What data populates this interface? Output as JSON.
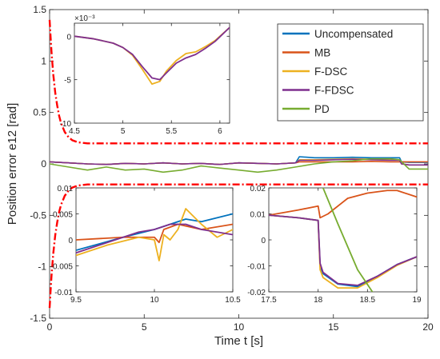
{
  "chart_data": [
    {
      "id": "main",
      "type": "line",
      "title": "",
      "xlabel": "Time t [s]",
      "ylabel": "Position error e12 [rad]",
      "xlim": [
        0,
        20
      ],
      "ylim": [
        -1.5,
        1.5
      ],
      "xticks": [
        0,
        5,
        10,
        15,
        20
      ],
      "xtick_labels": [
        "0",
        "5",
        "10",
        "15",
        "20"
      ],
      "yticks": [
        -1.5,
        -1,
        -0.5,
        0,
        0.5,
        1,
        1.5
      ],
      "ytick_labels": [
        "-1.5",
        "-1",
        "-0.5",
        "0",
        "0.5",
        "1",
        "1.5"
      ],
      "grid": false,
      "legend_position": "top-right",
      "series": [
        {
          "name": "Uncompensated",
          "color": "#0072BD",
          "x": [
            0,
            1,
            2,
            3,
            4,
            5,
            6,
            7,
            8,
            9,
            10,
            11,
            12,
            13,
            13.2,
            14,
            15,
            16,
            17,
            18,
            18.5,
            18.6,
            19,
            20
          ],
          "y": [
            0.02,
            0.01,
            0.0,
            -0.005,
            0.005,
            0.0,
            0.01,
            0.0,
            0.005,
            -0.005,
            0.01,
            0.005,
            0.0,
            0.01,
            0.07,
            0.06,
            0.06,
            0.065,
            0.06,
            0.06,
            0.06,
            0.02,
            0.015,
            0.015
          ]
        },
        {
          "name": "MB",
          "color": "#D95319",
          "x": [
            0,
            1,
            2,
            3,
            4,
            5,
            6,
            7,
            8,
            9,
            10,
            11,
            12,
            13,
            13.2,
            14,
            15,
            16,
            17,
            18,
            18.5,
            18.6,
            19,
            20
          ],
          "y": [
            0.02,
            0.01,
            0.0,
            -0.005,
            0.005,
            0.0,
            0.01,
            0.0,
            0.005,
            -0.005,
            0.01,
            0.005,
            0.0,
            0.01,
            0.02,
            0.02,
            0.02,
            0.02,
            0.025,
            0.02,
            0.02,
            0.02,
            0.02,
            0.02
          ]
        },
        {
          "name": "F-DSC",
          "color": "#EDB120",
          "x": [
            0,
            1,
            2,
            3,
            4,
            5,
            6,
            7,
            8,
            9,
            10,
            11,
            12,
            13,
            13.2,
            14,
            15,
            16,
            17,
            18,
            18.5,
            18.6,
            19,
            20
          ],
          "y": [
            0.02,
            0.01,
            0.0,
            -0.005,
            0.005,
            0.0,
            0.01,
            0.0,
            0.005,
            -0.005,
            0.01,
            0.005,
            0.0,
            0.01,
            0.04,
            0.04,
            0.045,
            0.05,
            0.045,
            0.04,
            0.04,
            0.0,
            -0.01,
            -0.01
          ]
        },
        {
          "name": "F-FDSC",
          "color": "#7E2F8E",
          "x": [
            0,
            1,
            2,
            3,
            4,
            5,
            6,
            7,
            8,
            9,
            10,
            11,
            12,
            13,
            13.2,
            14,
            15,
            16,
            17,
            18,
            18.5,
            18.6,
            19,
            20
          ],
          "y": [
            0.02,
            0.01,
            0.0,
            -0.005,
            0.005,
            0.0,
            0.01,
            0.0,
            0.005,
            -0.005,
            0.01,
            0.005,
            0.0,
            0.01,
            0.035,
            0.035,
            0.04,
            0.045,
            0.04,
            0.035,
            0.035,
            0.0,
            -0.01,
            -0.01
          ]
        },
        {
          "name": "PD",
          "color": "#77AC30",
          "x": [
            0,
            1,
            2,
            3,
            4,
            5,
            6,
            7,
            8,
            9,
            10,
            11,
            12,
            13,
            14,
            15,
            16,
            17,
            18,
            18.5,
            19,
            20
          ],
          "y": [
            0.0,
            -0.03,
            -0.06,
            -0.03,
            -0.06,
            -0.05,
            -0.08,
            -0.06,
            -0.02,
            -0.04,
            -0.06,
            -0.08,
            -0.06,
            -0.03,
            0.0,
            0.02,
            0.03,
            0.05,
            0.05,
            0.04,
            -0.05,
            -0.05
          ]
        }
      ],
      "bounds": {
        "name": "bounds",
        "color": "#ff0000",
        "x": [
          0,
          0.05,
          0.1,
          0.15,
          0.2,
          0.3,
          0.4,
          0.5,
          0.6,
          0.8,
          1.0,
          1.2,
          1.5,
          2,
          3,
          5,
          10,
          15,
          20
        ],
        "upper": [
          1.4,
          1.24,
          1.09,
          0.97,
          0.86,
          0.69,
          0.57,
          0.47,
          0.4,
          0.31,
          0.26,
          0.23,
          0.21,
          0.2,
          0.2,
          0.2,
          0.2,
          0.2,
          0.2
        ],
        "lower": [
          -1.4,
          -1.24,
          -1.09,
          -0.97,
          -0.86,
          -0.69,
          -0.57,
          -0.47,
          -0.4,
          -0.31,
          -0.26,
          -0.23,
          -0.21,
          -0.2,
          -0.2,
          -0.2,
          -0.2,
          -0.2,
          -0.2
        ]
      }
    },
    {
      "id": "inset1",
      "type": "line",
      "xlim": [
        4.5,
        6.1
      ],
      "ylim": [
        -0.01,
        0.0015
      ],
      "xticks": [
        4.5,
        5,
        5.5,
        6
      ],
      "xtick_labels": [
        "4.5",
        "5",
        "5.5",
        "6"
      ],
      "yticks": [
        0,
        -0.005,
        -0.01
      ],
      "ytick_labels": [
        "0",
        "-5",
        "-10"
      ],
      "exponent_label": "×10⁻³",
      "series": [
        {
          "name": "F-DSC",
          "color": "#EDB120",
          "x": [
            4.5,
            4.7,
            4.9,
            5.0,
            5.1,
            5.2,
            5.3,
            5.38,
            5.45,
            5.55,
            5.65,
            5.75,
            5.85,
            5.95,
            6.1
          ],
          "y": [
            0.0,
            -0.0003,
            -0.0008,
            -0.0013,
            -0.0022,
            -0.0038,
            -0.0055,
            -0.0052,
            -0.004,
            -0.0028,
            -0.002,
            -0.0018,
            -0.0012,
            -0.0005,
            0.001
          ]
        },
        {
          "name": "F-FDSC",
          "color": "#7E2F8E",
          "x": [
            4.5,
            4.7,
            4.9,
            5.0,
            5.1,
            5.2,
            5.3,
            5.38,
            5.45,
            5.55,
            5.65,
            5.75,
            5.85,
            5.95,
            6.1
          ],
          "y": [
            0.0,
            -0.0003,
            -0.0008,
            -0.0013,
            -0.0021,
            -0.0035,
            -0.0048,
            -0.005,
            -0.0042,
            -0.0031,
            -0.0025,
            -0.0021,
            -0.0014,
            -0.0006,
            0.001
          ]
        }
      ]
    },
    {
      "id": "inset2",
      "type": "line",
      "xlim": [
        9.5,
        10.5
      ],
      "ylim": [
        -0.01,
        0.01
      ],
      "xticks": [
        9.5,
        10,
        10.5
      ],
      "xtick_labels": [
        "9.5",
        "10",
        "10.5"
      ],
      "yticks": [
        0.01,
        0.005,
        0,
        -0.005,
        -0.01
      ],
      "ytick_labels": [
        "0.01",
        "0.005",
        "0",
        "-0.005",
        "-0.01"
      ],
      "series": [
        {
          "name": "Uncompensated",
          "color": "#0072BD",
          "x": [
            9.5,
            9.8,
            10.0,
            10.1,
            10.2,
            10.3,
            10.5
          ],
          "y": [
            -0.002,
            0.0005,
            0.002,
            0.003,
            0.004,
            0.0035,
            0.005
          ]
        },
        {
          "name": "MB",
          "color": "#D95319",
          "x": [
            9.5,
            9.8,
            10.0,
            10.03,
            10.06,
            10.15,
            10.3,
            10.5
          ],
          "y": [
            0.0,
            0.0005,
            0.0005,
            -0.0005,
            0.002,
            0.003,
            0.002,
            0.003
          ]
        },
        {
          "name": "F-DSC",
          "color": "#EDB120",
          "x": [
            9.5,
            9.7,
            9.9,
            10.0,
            10.03,
            10.06,
            10.1,
            10.15,
            10.2,
            10.3,
            10.4,
            10.5
          ],
          "y": [
            -0.003,
            -0.001,
            0.0005,
            0.0,
            -0.004,
            0.001,
            0.0,
            0.002,
            0.006,
            0.003,
            0.0005,
            0.002
          ]
        },
        {
          "name": "F-FDSC",
          "color": "#7E2F8E",
          "x": [
            9.5,
            9.7,
            9.9,
            10.0,
            10.1,
            10.2,
            10.3,
            10.5
          ],
          "y": [
            -0.0025,
            -0.0005,
            0.0015,
            0.002,
            0.003,
            0.003,
            0.002,
            0.001
          ]
        }
      ]
    },
    {
      "id": "inset3",
      "type": "line",
      "xlim": [
        17.5,
        19
      ],
      "ylim": [
        -0.02,
        0.02
      ],
      "xticks": [
        17.5,
        18,
        18.5,
        19
      ],
      "xtick_labels": [
        "17.5",
        "18",
        "18.5",
        "19"
      ],
      "yticks": [
        0.02,
        0.01,
        0,
        -0.01,
        -0.02
      ],
      "ytick_labels": [
        "0.02",
        "0.01",
        "0",
        "-0.01",
        "-0.02"
      ],
      "series": [
        {
          "name": "Uncompensated",
          "color": "#0072BD",
          "x": [
            17.5,
            17.8,
            18.0,
            18.02,
            18.05,
            18.2,
            18.4,
            18.6,
            18.8,
            19.0
          ],
          "y": [
            0.0095,
            0.0085,
            0.0075,
            -0.01,
            -0.013,
            -0.017,
            -0.018,
            -0.014,
            -0.0095,
            -0.0065
          ]
        },
        {
          "name": "MB",
          "color": "#D95319",
          "x": [
            17.5,
            17.8,
            18.0,
            18.02,
            18.1,
            18.3,
            18.5,
            18.7,
            18.8,
            19.0
          ],
          "y": [
            0.0095,
            0.0115,
            0.013,
            0.0085,
            0.01,
            0.016,
            0.018,
            0.019,
            0.019,
            0.0165
          ]
        },
        {
          "name": "F-DSC",
          "color": "#EDB120",
          "x": [
            17.5,
            17.8,
            18.0,
            18.02,
            18.05,
            18.2,
            18.4,
            18.6,
            18.8,
            19.0
          ],
          "y": [
            0.0095,
            0.0085,
            0.0075,
            -0.0115,
            -0.0145,
            -0.0185,
            -0.0185,
            -0.0145,
            -0.0098,
            -0.0065
          ]
        },
        {
          "name": "F-FDSC",
          "color": "#7E2F8E",
          "x": [
            17.5,
            17.8,
            18.0,
            18.02,
            18.05,
            18.2,
            18.4,
            18.6,
            18.8,
            19.0
          ],
          "y": [
            0.0095,
            0.0085,
            0.0075,
            -0.009,
            -0.0125,
            -0.0168,
            -0.0175,
            -0.014,
            -0.0095,
            -0.0065
          ]
        },
        {
          "name": "PD",
          "color": "#77AC30",
          "x": [
            18.05,
            18.2,
            18.4,
            18.55
          ],
          "y": [
            0.02,
            0.0062,
            -0.0115,
            -0.02
          ]
        }
      ]
    }
  ]
}
